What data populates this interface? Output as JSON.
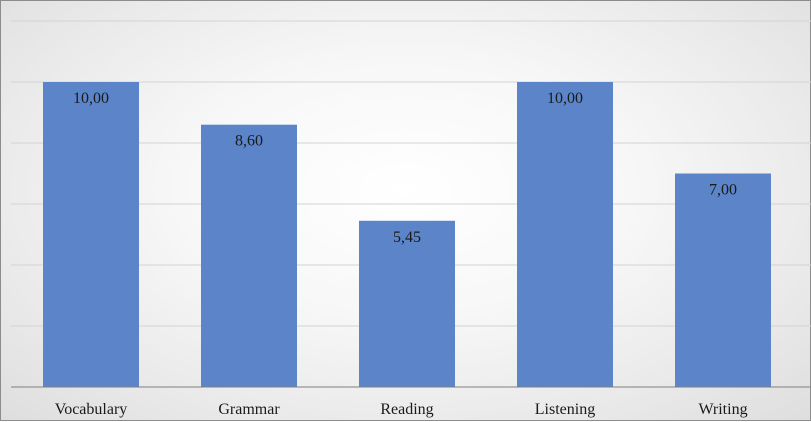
{
  "chart_data": {
    "type": "bar",
    "categories": [
      "Vocabulary",
      "Grammar",
      "Reading",
      "Listening",
      "Writing"
    ],
    "values": [
      10.0,
      8.6,
      5.45,
      10.0,
      7.0
    ],
    "data_labels": [
      "10,00",
      "8,60",
      "5,45",
      "10,00",
      "7,00"
    ],
    "title": "",
    "xlabel": "",
    "ylabel": "",
    "ylim": [
      0,
      12
    ],
    "grid": true,
    "legend": "none",
    "bar_color": "#5b84c9"
  }
}
